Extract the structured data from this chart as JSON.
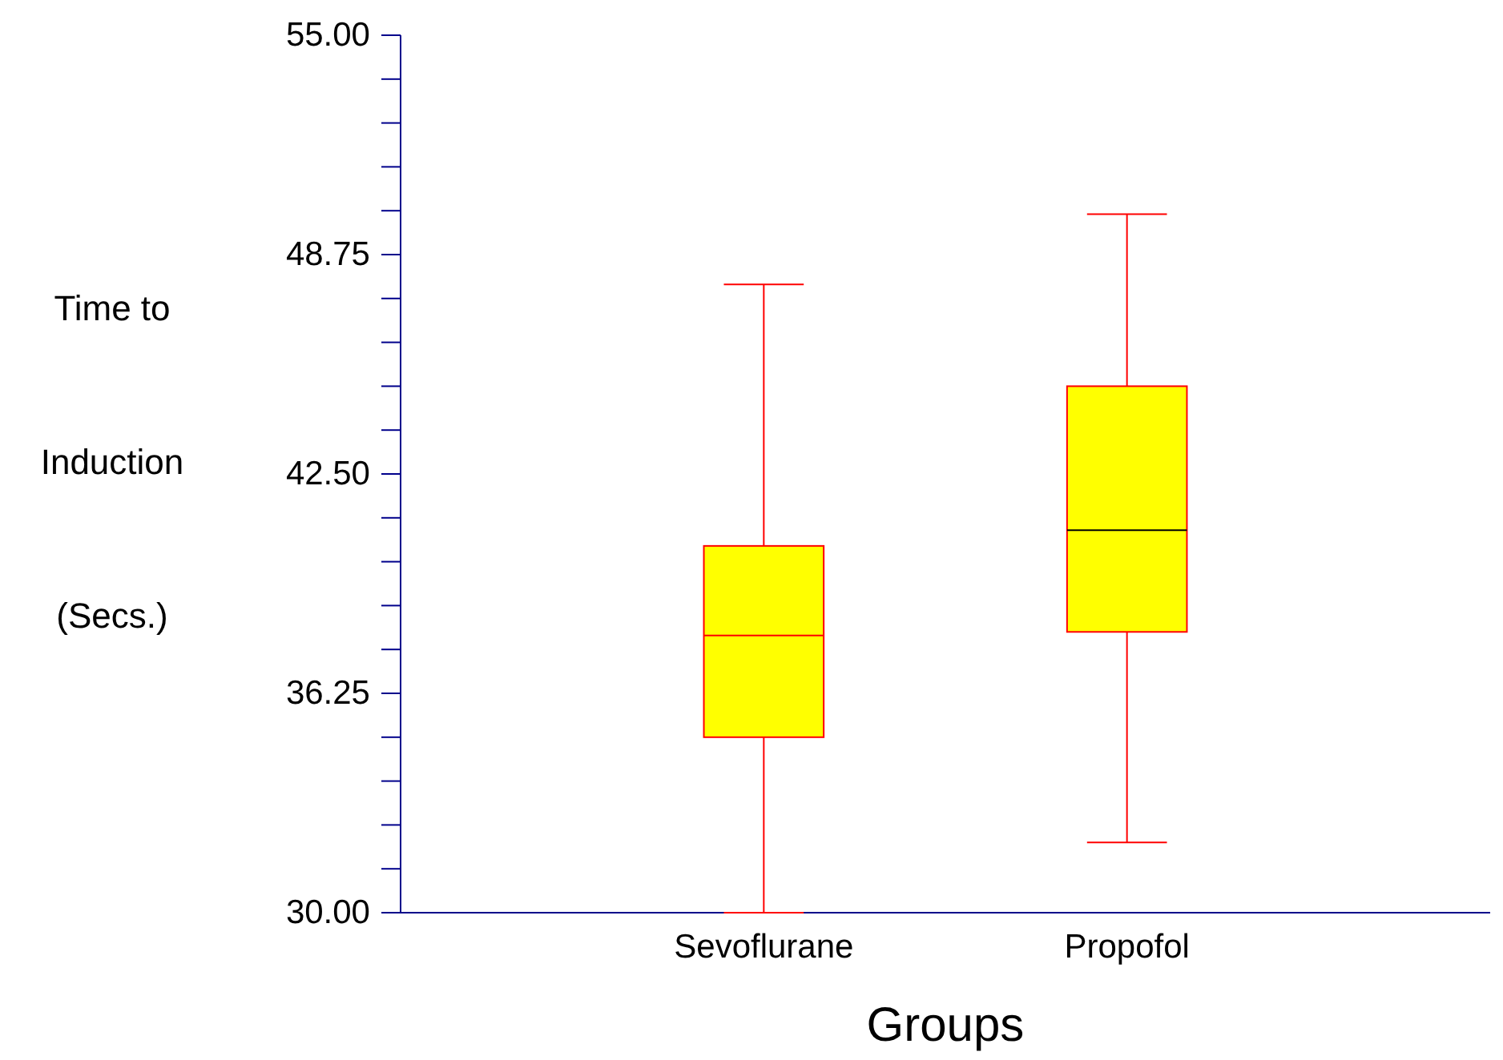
{
  "chart_data": {
    "type": "box",
    "xlabel": "Groups",
    "ylabel": "Time to Induction (Secs.)",
    "categories": [
      "Sevoflurane",
      "Propofol"
    ],
    "boxes": [
      {
        "low": 30.0,
        "q1": 35.0,
        "median": 37.9,
        "q3": 40.45,
        "high": 47.9
      },
      {
        "low": 32.0,
        "q1": 38.0,
        "median": 40.9,
        "q3": 45.0,
        "high": 49.9
      }
    ],
    "color": "#ffff00",
    "ylim": [
      30,
      55
    ],
    "yticks": [
      {
        "value": 30,
        "label": "30.00"
      },
      {
        "value": 31.25,
        "label": null
      },
      {
        "value": 32.5,
        "label": null
      },
      {
        "value": 33.75,
        "label": null
      },
      {
        "value": 35,
        "label": null
      },
      {
        "value": 36.25,
        "label": "36.25"
      },
      {
        "value": 37.5,
        "label": null
      },
      {
        "value": 38.75,
        "label": null
      },
      {
        "value": 40,
        "label": null
      },
      {
        "value": 41.25,
        "label": null
      },
      {
        "value": 42.5,
        "label": "42.50"
      },
      {
        "value": 43.75,
        "label": null
      },
      {
        "value": 45,
        "label": null
      },
      {
        "value": 46.25,
        "label": null
      },
      {
        "value": 47.5,
        "label": null
      },
      {
        "value": 48.75,
        "label": "48.75"
      },
      {
        "value": 50,
        "label": null
      },
      {
        "value": 51.25,
        "label": null
      },
      {
        "value": 52.5,
        "label": null
      },
      {
        "value": 53.75,
        "label": null
      },
      {
        "value": 55,
        "label": "55.00"
      }
    ],
    "grid": false
  }
}
